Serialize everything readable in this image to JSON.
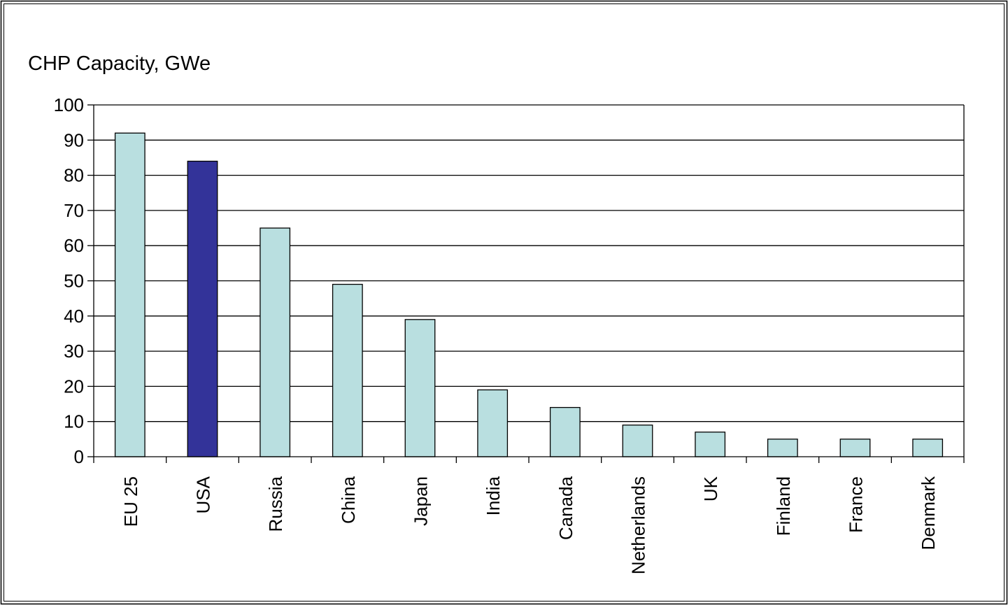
{
  "chart_data": {
    "type": "bar",
    "title": "CHP Capacity, GWe",
    "xlabel": "",
    "ylabel": "",
    "categories": [
      "EU 25",
      "USA",
      "Russia",
      "China",
      "Japan",
      "India",
      "Canada",
      "Netherlands",
      "UK",
      "Finland",
      "France",
      "Denmark"
    ],
    "values": [
      92,
      84,
      65,
      49,
      39,
      19,
      14,
      9,
      7,
      5,
      5,
      5
    ],
    "ylim": [
      0,
      100
    ],
    "yticks": [
      0,
      10,
      20,
      30,
      40,
      50,
      60,
      70,
      80,
      90,
      100
    ],
    "grid": true,
    "legend": "none",
    "colors": {
      "bar": "#b9dfe0",
      "highlight_bar": "#333399",
      "highlight_category": "USA",
      "bar_border": "#000000",
      "gridline": "#000000"
    }
  }
}
